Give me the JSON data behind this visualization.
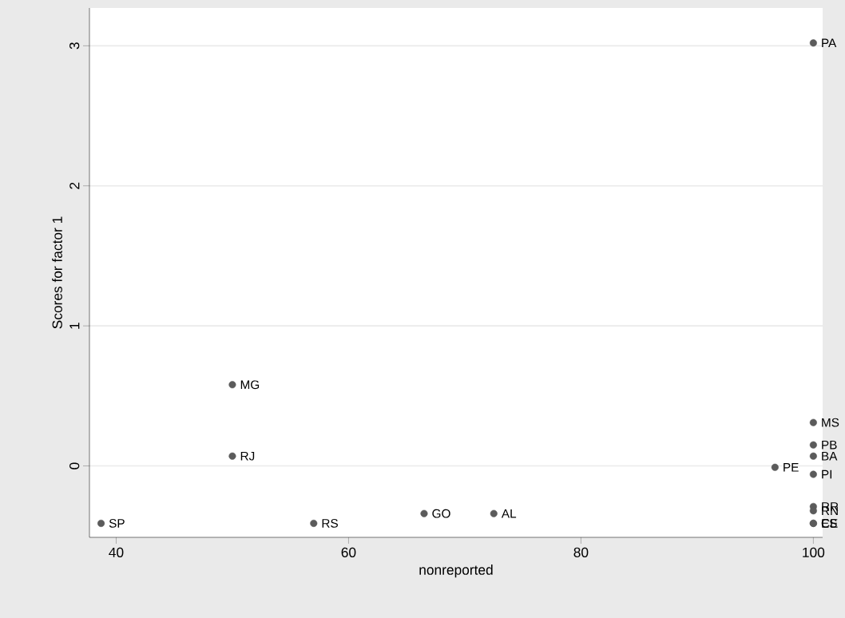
{
  "chart_data": {
    "type": "scatter",
    "xlabel": "nonreported",
    "ylabel": "Scores for factor 1",
    "x": [
      100,
      50,
      50,
      38.7,
      57.0,
      66.5,
      72.5,
      96.7,
      100,
      100,
      100,
      100,
      100,
      100,
      100,
      100
    ],
    "series": [
      {
        "color": "#5b5b5b",
        "values": [
          3.02,
          0.58,
          0.07,
          -0.41,
          -0.41,
          -0.34,
          -0.34,
          -0.01,
          0.31,
          0.15,
          0.07,
          -0.06,
          -0.29,
          -0.32,
          -0.41,
          -0.41
        ]
      }
    ],
    "annotations": [
      {
        "text": "PA",
        "x": 100,
        "y": 3.02
      },
      {
        "text": "MG",
        "x": 50,
        "y": 0.58
      },
      {
        "text": "RJ",
        "x": 50,
        "y": 0.07
      },
      {
        "text": "SP",
        "x": 38.7,
        "y": -0.41
      },
      {
        "text": "RS",
        "x": 57.0,
        "y": -0.41
      },
      {
        "text": "GO",
        "x": 66.5,
        "y": -0.34
      },
      {
        "text": "AL",
        "x": 72.5,
        "y": -0.34
      },
      {
        "text": "PE",
        "x": 96.7,
        "y": -0.01
      },
      {
        "text": "MS",
        "x": 100,
        "y": 0.31
      },
      {
        "text": "PB",
        "x": 100,
        "y": 0.15
      },
      {
        "text": "BA",
        "x": 100,
        "y": 0.07
      },
      {
        "text": "PI",
        "x": 100,
        "y": -0.06
      },
      {
        "text": "RR",
        "x": 100,
        "y": -0.29
      },
      {
        "text": "RN",
        "x": 100,
        "y": -0.32
      },
      {
        "text": "CE",
        "x": 100,
        "y": -0.41
      },
      {
        "text": "ES",
        "x": 100,
        "y": -0.41
      }
    ],
    "xlim": [
      37.7,
      100.8
    ],
    "ylim": [
      -0.51,
      3.27
    ],
    "xticks": [
      40,
      60,
      80,
      100
    ],
    "yticks": [
      0,
      1,
      2,
      3
    ],
    "grid": "y",
    "marker": "circle"
  }
}
